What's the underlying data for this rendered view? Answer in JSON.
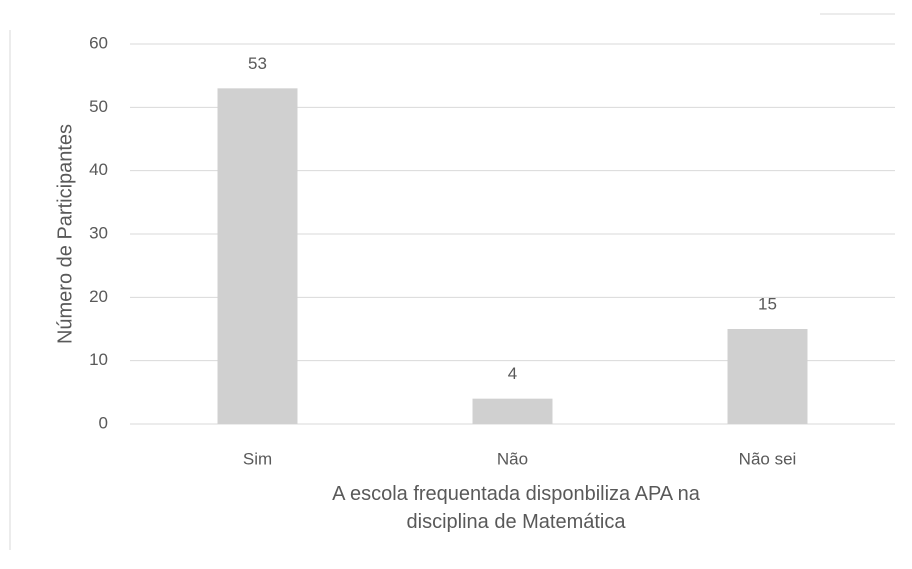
{
  "chart_data": {
    "type": "bar",
    "categories": [
      "Sim",
      "Não",
      "Não sei"
    ],
    "values": [
      53,
      4,
      15
    ],
    "color": "#d0d0d0",
    "ylim": [
      0,
      60
    ],
    "yticks": [
      0,
      10,
      20,
      30,
      40,
      50,
      60
    ],
    "grid": true,
    "x_label": "A escola frequentada disponbiliza APA na disciplina de Matemática",
    "y_label": "Número de Participantes"
  }
}
